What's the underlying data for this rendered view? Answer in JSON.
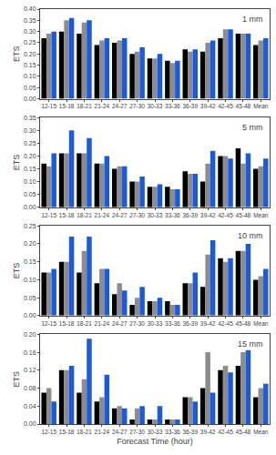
{
  "chart_data": [
    {
      "type": "bar",
      "annotations": [
        "1 mm"
      ],
      "categories": [
        "12-15",
        "15-18",
        "18-21",
        "21-24",
        "24-27",
        "27-30",
        "30-33",
        "33-36",
        "36-39",
        "39-42",
        "42-45",
        "45-48",
        "Mean"
      ],
      "ylabel": "ETS",
      "ylim": [
        0.0,
        0.4
      ],
      "yticks": [
        {
          "value": 0.0,
          "label": "0.00"
        },
        0.05,
        {
          "value": 0.1,
          "label": "0.10"
        },
        0.15,
        {
          "value": 0.2,
          "label": "0.20"
        },
        0.25,
        {
          "value": 0.3,
          "label": "0.30"
        },
        0.35,
        {
          "value": 0.4,
          "label": "0.40"
        }
      ],
      "grid": false,
      "series": [
        {
          "color": "#000000",
          "values": [
            0.27,
            0.3,
            0.29,
            0.24,
            0.25,
            0.2,
            0.18,
            0.17,
            0.22,
            0.21,
            0.27,
            0.29,
            0.24
          ]
        },
        {
          "color": "#8c8c8c",
          "values": [
            0.29,
            0.35,
            0.34,
            0.26,
            0.26,
            0.21,
            0.18,
            0.16,
            0.21,
            0.25,
            0.31,
            0.29,
            0.26
          ]
        },
        {
          "color": "#1a5ae0",
          "values": [
            0.3,
            0.36,
            0.35,
            0.27,
            0.27,
            0.23,
            0.2,
            0.17,
            0.22,
            0.26,
            0.31,
            0.29,
            0.27
          ]
        }
      ]
    },
    {
      "type": "bar",
      "annotations": [
        "5 mm"
      ],
      "categories": [
        "12-15",
        "15-18",
        "18-21",
        "21-24",
        "24-27",
        "27-30",
        "30-33",
        "33-36",
        "36-39",
        "39-42",
        "42-45",
        "45-48",
        "Mean"
      ],
      "ylabel": "ETS",
      "ylim": [
        0.0,
        0.35
      ],
      "yticks": [
        {
          "value": 0.0,
          "label": "0.00"
        },
        0.05,
        {
          "value": 0.1,
          "label": "0.10"
        },
        0.15,
        {
          "value": 0.2,
          "label": "0.20"
        },
        0.25,
        {
          "value": 0.3,
          "label": "0.30"
        },
        0.35
      ],
      "grid": false,
      "series": [
        {
          "color": "#000000",
          "values": [
            0.17,
            0.21,
            0.21,
            0.17,
            0.15,
            0.1,
            0.08,
            0.08,
            0.14,
            0.1,
            0.2,
            0.23,
            0.15
          ]
        },
        {
          "color": "#8c8c8c",
          "values": [
            0.16,
            0.21,
            0.21,
            0.17,
            0.16,
            0.1,
            0.08,
            0.07,
            0.13,
            0.17,
            0.2,
            0.17,
            0.16
          ]
        },
        {
          "color": "#1a5ae0",
          "values": [
            0.21,
            0.3,
            0.27,
            0.2,
            0.16,
            0.12,
            0.09,
            0.07,
            0.13,
            0.22,
            0.19,
            0.21,
            0.19
          ]
        }
      ]
    },
    {
      "type": "bar",
      "annotations": [
        "10 mm"
      ],
      "categories": [
        "12-15",
        "15-18",
        "18-21",
        "21-24",
        "24-27",
        "27-30",
        "30-33",
        "33-36",
        "36-39",
        "39-42",
        "42-45",
        "45-48",
        "Mean"
      ],
      "ylabel": "ETS",
      "ylim": [
        0.0,
        0.25
      ],
      "yticks": [
        {
          "value": 0.0,
          "label": "0.00"
        },
        0.05,
        {
          "value": 0.1,
          "label": "0.10"
        },
        0.15,
        {
          "value": 0.2,
          "label": "0.20"
        },
        0.25
      ],
      "grid": false,
      "series": [
        {
          "color": "#000000",
          "values": [
            0.12,
            0.15,
            0.12,
            0.09,
            0.06,
            0.03,
            0.04,
            0.04,
            0.09,
            0.08,
            0.16,
            0.18,
            0.1
          ]
        },
        {
          "color": "#8c8c8c",
          "values": [
            0.12,
            0.15,
            0.18,
            0.13,
            0.09,
            0.05,
            0.04,
            0.03,
            0.09,
            0.17,
            0.15,
            0.18,
            0.11
          ]
        },
        {
          "color": "#1a5ae0",
          "values": [
            0.13,
            0.22,
            0.22,
            0.13,
            0.07,
            0.08,
            0.05,
            0.03,
            0.12,
            0.21,
            0.16,
            0.2,
            0.13
          ]
        }
      ]
    },
    {
      "type": "bar",
      "annotations": [
        "15 mm"
      ],
      "categories": [
        "12-15",
        "15-18",
        "18-21",
        "21-24",
        "24-27",
        "27-30",
        "30-33",
        "33-36",
        "36-39",
        "39-42",
        "42-45",
        "45-48",
        "Mean"
      ],
      "xlabel": "Forecast Time (hour)",
      "ylabel": "ETS",
      "ylim": [
        0.0,
        0.2
      ],
      "yticks": [
        {
          "value": 0.0,
          "label": "0.00"
        },
        0.04,
        0.08,
        0.12,
        0.16,
        {
          "value": 0.2,
          "label": "0.20"
        }
      ],
      "grid": false,
      "series": [
        {
          "color": "#000000",
          "values": [
            0.07,
            0.12,
            0.07,
            0.05,
            0.035,
            0.01,
            0.01,
            0.01,
            0.06,
            0.08,
            0.12,
            0.13,
            0.06
          ]
        },
        {
          "color": "#8c8c8c",
          "values": [
            0.08,
            0.12,
            0.1,
            0.06,
            0.04,
            0.035,
            0.01,
            0.01,
            0.06,
            0.16,
            0.13,
            0.16,
            0.08
          ]
        },
        {
          "color": "#1a5ae0",
          "values": [
            0.05,
            0.13,
            0.19,
            0.11,
            0.035,
            0.04,
            0.04,
            0.01,
            0.05,
            0.07,
            0.115,
            0.165,
            0.09
          ]
        }
      ]
    }
  ]
}
